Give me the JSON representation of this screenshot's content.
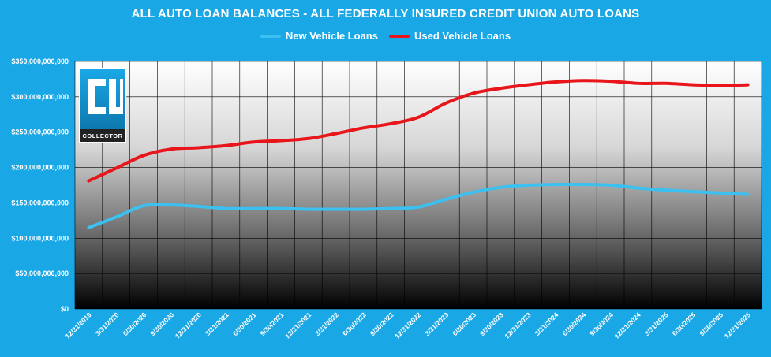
{
  "chart_data": {
    "type": "line",
    "title": "ALL AUTO LOAN BALANCES - ALL FEDERALLY INSURED CREDIT UNION AUTO LOANS",
    "xlabel": "",
    "ylabel": "",
    "ylim": [
      0,
      350000000000
    ],
    "yticks": [
      {
        "value": 0,
        "label": "$0"
      },
      {
        "value": 50000000000,
        "label": "$50,000,000,000"
      },
      {
        "value": 100000000000,
        "label": "$100,000,000,000"
      },
      {
        "value": 150000000000,
        "label": "$150,000,000,000"
      },
      {
        "value": 200000000000,
        "label": "$200,000,000,000"
      },
      {
        "value": 250000000000,
        "label": "$250,000,000,000"
      },
      {
        "value": 300000000000,
        "label": "$300,000,000,000"
      },
      {
        "value": 350000000000,
        "label": "$350,000,000,000"
      }
    ],
    "categories": [
      "12/31/2019",
      "3/31/2020",
      "6/30/2020",
      "9/30/2020",
      "12/31/2020",
      "3/31/2021",
      "6/30/2021",
      "9/30/2021",
      "12/31/2021",
      "3/31/2022",
      "6/30/2022",
      "9/30/2022",
      "12/31/2022",
      "3/31/2023",
      "6/30/2023",
      "9/30/2023",
      "12/31/2023",
      "3/31/2024",
      "6/30/2024",
      "9/30/2024",
      "12/31/2024",
      "3/31/2025",
      "6/30/2025",
      "9/30/2025",
      "12/31/2025"
    ],
    "legend_position": "top",
    "grid": true,
    "series": [
      {
        "name": "New Vehicle Loans",
        "color": "#3cc0f0",
        "values": [
          115000000000,
          130000000000,
          146000000000,
          147000000000,
          145000000000,
          142000000000,
          142000000000,
          142000000000,
          141000000000,
          141000000000,
          141000000000,
          142000000000,
          144000000000,
          155000000000,
          165000000000,
          172000000000,
          175000000000,
          176000000000,
          176000000000,
          175000000000,
          171000000000,
          168000000000,
          166000000000,
          164000000000,
          162000000000
        ]
      },
      {
        "name": "Used Vehicle Loans",
        "color": "#e8151b",
        "values": [
          181000000000,
          199000000000,
          217000000000,
          226000000000,
          228000000000,
          231000000000,
          236000000000,
          238000000000,
          241000000000,
          248000000000,
          256000000000,
          262000000000,
          271000000000,
          291000000000,
          305000000000,
          312000000000,
          317000000000,
          321000000000,
          323000000000,
          322000000000,
          319000000000,
          319000000000,
          317000000000,
          316000000000,
          317000000000
        ]
      }
    ]
  },
  "logo": {
    "brand_text": "COLLECTOR",
    "accent_color": "#1aa7e6"
  },
  "colors": {
    "background": "#1aa7e6",
    "grid": "#000000",
    "text": "#ffffff"
  }
}
